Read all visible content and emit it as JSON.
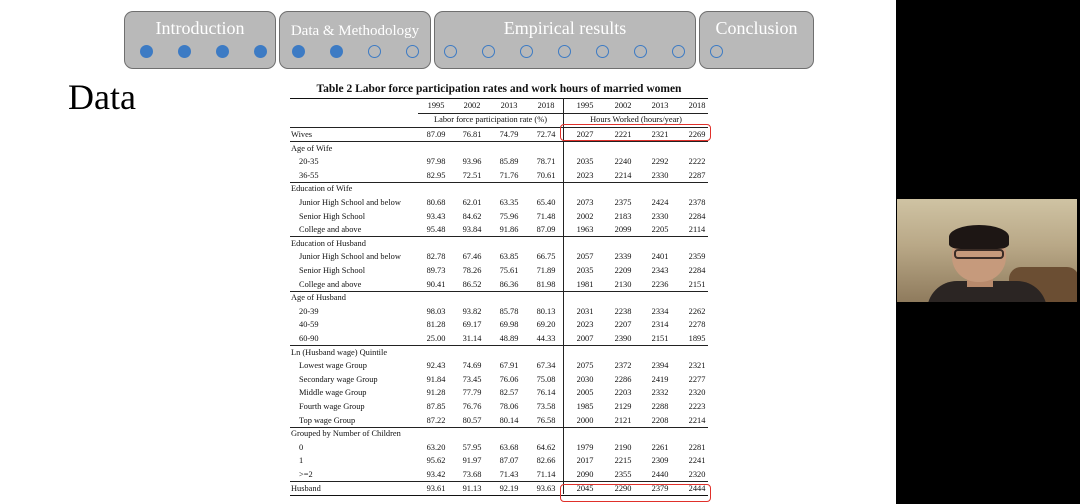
{
  "nav": {
    "tabs": [
      {
        "label": "Introduction",
        "dots": [
          true,
          true,
          true,
          true
        ]
      },
      {
        "label": "Data & Methodology",
        "dots": [
          true,
          true,
          false,
          false
        ]
      },
      {
        "label": "Empirical results",
        "dots": [
          false,
          false,
          false,
          false,
          false,
          false,
          false
        ]
      },
      {
        "label": "Conclusion",
        "dots": [
          false
        ]
      }
    ]
  },
  "section_title": "Data",
  "table": {
    "caption": "Table 2 Labor force participation rates and work hours of married women",
    "years": [
      "1995",
      "2002",
      "2013",
      "2018",
      "1995",
      "2002",
      "2013",
      "2018"
    ],
    "group_headers": {
      "left": "Labor force participation rate (%)",
      "right": "Hours Worked (hours/year)"
    },
    "rows": [
      {
        "label": "Wives",
        "vals": [
          "87.09",
          "76.81",
          "74.79",
          "72.74",
          "2027",
          "2221",
          "2321",
          "2269"
        ]
      },
      {
        "label": "Age of Wife",
        "header": true
      },
      {
        "label": "20-35",
        "indent": true,
        "vals": [
          "97.98",
          "93.96",
          "85.89",
          "78.71",
          "2035",
          "2240",
          "2292",
          "2222"
        ]
      },
      {
        "label": "36-55",
        "indent": true,
        "vals": [
          "82.95",
          "72.51",
          "71.76",
          "70.61",
          "2023",
          "2214",
          "2330",
          "2287"
        ]
      },
      {
        "label": "Education of Wife",
        "header": true
      },
      {
        "label": "Junior High School and below",
        "indent": true,
        "vals": [
          "80.68",
          "62.01",
          "63.35",
          "65.40",
          "2073",
          "2375",
          "2424",
          "2378"
        ]
      },
      {
        "label": "Senior High School",
        "indent": true,
        "vals": [
          "93.43",
          "84.62",
          "75.96",
          "71.48",
          "2002",
          "2183",
          "2330",
          "2284"
        ]
      },
      {
        "label": "College and above",
        "indent": true,
        "vals": [
          "95.48",
          "93.84",
          "91.86",
          "87.09",
          "1963",
          "2099",
          "2205",
          "2114"
        ]
      },
      {
        "label": "Education of Husband",
        "header": true
      },
      {
        "label": "Junior High School and below",
        "indent": true,
        "vals": [
          "82.78",
          "67.46",
          "63.85",
          "66.75",
          "2057",
          "2339",
          "2401",
          "2359"
        ]
      },
      {
        "label": "Senior High School",
        "indent": true,
        "vals": [
          "89.73",
          "78.26",
          "75.61",
          "71.89",
          "2035",
          "2209",
          "2343",
          "2284"
        ]
      },
      {
        "label": "College and above",
        "indent": true,
        "vals": [
          "90.41",
          "86.52",
          "86.36",
          "81.98",
          "1981",
          "2130",
          "2236",
          "2151"
        ]
      },
      {
        "label": "Age of Husband",
        "header": true
      },
      {
        "label": "20-39",
        "indent": true,
        "vals": [
          "98.03",
          "93.82",
          "85.78",
          "80.13",
          "2031",
          "2238",
          "2334",
          "2262"
        ]
      },
      {
        "label": "40-59",
        "indent": true,
        "vals": [
          "81.28",
          "69.17",
          "69.98",
          "69.20",
          "2023",
          "2207",
          "2314",
          "2278"
        ]
      },
      {
        "label": "60-90",
        "indent": true,
        "vals": [
          "25.00",
          "31.14",
          "48.89",
          "44.33",
          "2007",
          "2390",
          "2151",
          "1895"
        ]
      },
      {
        "label": "Ln (Husband wage) Quintile",
        "header": true
      },
      {
        "label": "Lowest wage Group",
        "indent": true,
        "vals": [
          "92.43",
          "74.69",
          "67.91",
          "67.34",
          "2075",
          "2372",
          "2394",
          "2321"
        ]
      },
      {
        "label": "Secondary wage Group",
        "indent": true,
        "vals": [
          "91.84",
          "73.45",
          "76.06",
          "75.08",
          "2030",
          "2286",
          "2419",
          "2277"
        ]
      },
      {
        "label": "Middle wage Group",
        "indent": true,
        "vals": [
          "91.28",
          "77.79",
          "82.57",
          "76.14",
          "2005",
          "2203",
          "2332",
          "2320"
        ]
      },
      {
        "label": "Fourth wage Group",
        "indent": true,
        "vals": [
          "87.85",
          "76.76",
          "78.06",
          "73.58",
          "1985",
          "2129",
          "2288",
          "2223"
        ]
      },
      {
        "label": "Top wage Group",
        "indent": true,
        "vals": [
          "87.22",
          "80.57",
          "80.14",
          "76.58",
          "2000",
          "2121",
          "2208",
          "2214"
        ]
      },
      {
        "label": "Grouped by Number of Children",
        "header": true
      },
      {
        "label": "0",
        "indent": true,
        "vals": [
          "63.20",
          "57.95",
          "63.68",
          "64.62",
          "1979",
          "2190",
          "2261",
          "2281"
        ]
      },
      {
        "label": "1",
        "indent": true,
        "vals": [
          "95.62",
          "91.97",
          "87.07",
          "82.66",
          "2017",
          "2215",
          "2309",
          "2241"
        ]
      },
      {
        "label": ">=2",
        "indent": true,
        "vals": [
          "93.42",
          "73.68",
          "71.43",
          "71.14",
          "2090",
          "2355",
          "2440",
          "2320"
        ]
      },
      {
        "label": "Husband",
        "vals": [
          "93.61",
          "91.13",
          "92.19",
          "93.63",
          "2045",
          "2290",
          "2379",
          "2444"
        ]
      }
    ]
  },
  "colors": {
    "nav_fill": "#b9b9b9",
    "nav_dot": "#3d7bc4",
    "highlight": "#e0302a"
  }
}
